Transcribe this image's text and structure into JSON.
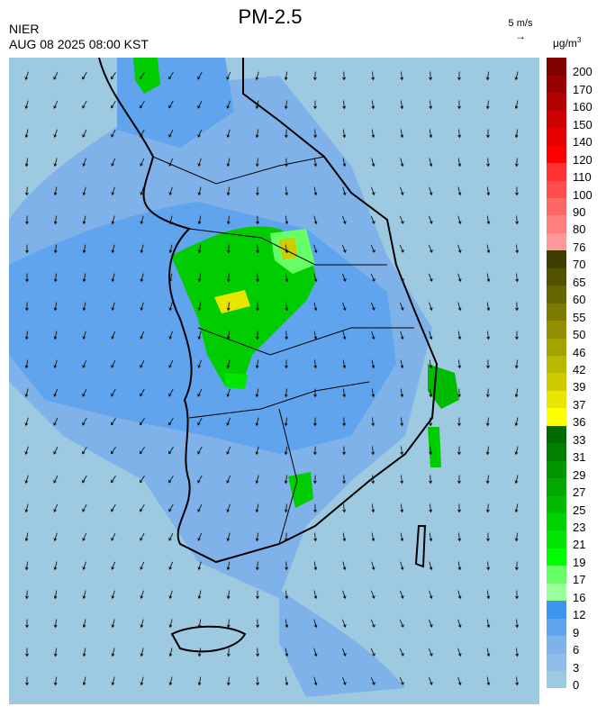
{
  "header": {
    "title": "PM-2.5",
    "source": "NIER",
    "datetime": "AUG 08 2025 08:00 KST",
    "wind_ref_label": "5 m/s",
    "unit_base": "μg/m",
    "unit_exp": "3"
  },
  "legend": {
    "bins": [
      {
        "label": "0",
        "color": "#9ecae1"
      },
      {
        "label": "3",
        "color": "#8fbfe8"
      },
      {
        "label": "6",
        "color": "#7fb2e8"
      },
      {
        "label": "9",
        "color": "#5fa4ec"
      },
      {
        "label": "12",
        "color": "#3b96f0"
      },
      {
        "label": "16",
        "color": "#99ff99"
      },
      {
        "label": "17",
        "color": "#66ff66"
      },
      {
        "label": "19",
        "color": "#00ff00"
      },
      {
        "label": "21",
        "color": "#00e600"
      },
      {
        "label": "23",
        "color": "#00d100"
      },
      {
        "label": "25",
        "color": "#00bb00"
      },
      {
        "label": "27",
        "color": "#00a800"
      },
      {
        "label": "29",
        "color": "#009600"
      },
      {
        "label": "31",
        "color": "#007f00"
      },
      {
        "label": "33",
        "color": "#006a00"
      },
      {
        "label": "36",
        "color": "#ffff00"
      },
      {
        "label": "37",
        "color": "#e6e600"
      },
      {
        "label": "39",
        "color": "#cccc00"
      },
      {
        "label": "42",
        "color": "#b8b800"
      },
      {
        "label": "46",
        "color": "#a3a300"
      },
      {
        "label": "50",
        "color": "#8f8f00"
      },
      {
        "label": "55",
        "color": "#7a7a00"
      },
      {
        "label": "60",
        "color": "#666600"
      },
      {
        "label": "65",
        "color": "#525200"
      },
      {
        "label": "70",
        "color": "#3d3d00"
      },
      {
        "label": "76",
        "color": "#ff9999"
      },
      {
        "label": "80",
        "color": "#ff7f7f"
      },
      {
        "label": "90",
        "color": "#ff6666"
      },
      {
        "label": "100",
        "color": "#ff4d4d"
      },
      {
        "label": "110",
        "color": "#ff3333"
      },
      {
        "label": "120",
        "color": "#ff0000"
      },
      {
        "label": "140",
        "color": "#e60000"
      },
      {
        "label": "150",
        "color": "#cc0000"
      },
      {
        "label": "160",
        "color": "#b30000"
      },
      {
        "label": "170",
        "color": "#990000"
      },
      {
        "label": "200",
        "color": "#800000"
      }
    ]
  }
}
